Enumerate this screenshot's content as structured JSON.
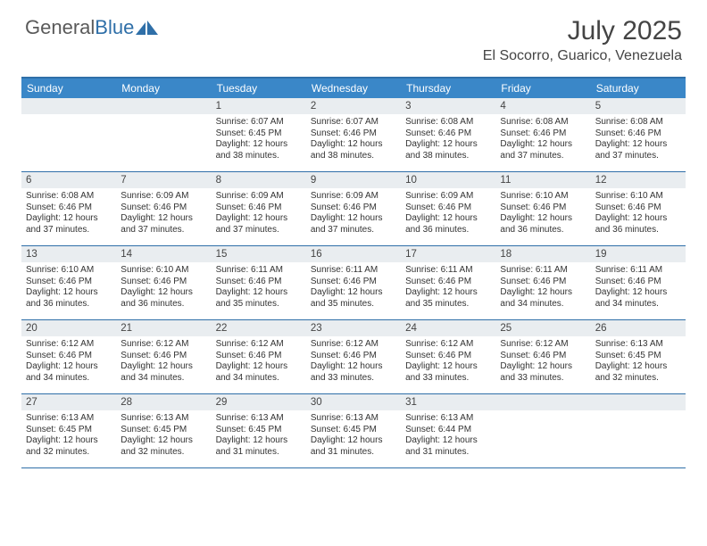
{
  "logo": {
    "text1": "General",
    "text2": "Blue"
  },
  "title": "July 2025",
  "location": "El Socorro, Guarico, Venezuela",
  "colors": {
    "header_bar": "#3a87c8",
    "border": "#2f6fa8",
    "day_band": "#e9edf0",
    "logo_gray": "#5a5a5a",
    "logo_blue": "#2f6fa8"
  },
  "day_names": [
    "Sunday",
    "Monday",
    "Tuesday",
    "Wednesday",
    "Thursday",
    "Friday",
    "Saturday"
  ],
  "labels": {
    "sunrise": "Sunrise:",
    "sunset": "Sunset:",
    "daylight": "Daylight:"
  },
  "weeks": [
    [
      null,
      null,
      {
        "n": "1",
        "sr": "6:07 AM",
        "ss": "6:45 PM",
        "dl": "12 hours and 38 minutes."
      },
      {
        "n": "2",
        "sr": "6:07 AM",
        "ss": "6:46 PM",
        "dl": "12 hours and 38 minutes."
      },
      {
        "n": "3",
        "sr": "6:08 AM",
        "ss": "6:46 PM",
        "dl": "12 hours and 38 minutes."
      },
      {
        "n": "4",
        "sr": "6:08 AM",
        "ss": "6:46 PM",
        "dl": "12 hours and 37 minutes."
      },
      {
        "n": "5",
        "sr": "6:08 AM",
        "ss": "6:46 PM",
        "dl": "12 hours and 37 minutes."
      }
    ],
    [
      {
        "n": "6",
        "sr": "6:08 AM",
        "ss": "6:46 PM",
        "dl": "12 hours and 37 minutes."
      },
      {
        "n": "7",
        "sr": "6:09 AM",
        "ss": "6:46 PM",
        "dl": "12 hours and 37 minutes."
      },
      {
        "n": "8",
        "sr": "6:09 AM",
        "ss": "6:46 PM",
        "dl": "12 hours and 37 minutes."
      },
      {
        "n": "9",
        "sr": "6:09 AM",
        "ss": "6:46 PM",
        "dl": "12 hours and 37 minutes."
      },
      {
        "n": "10",
        "sr": "6:09 AM",
        "ss": "6:46 PM",
        "dl": "12 hours and 36 minutes."
      },
      {
        "n": "11",
        "sr": "6:10 AM",
        "ss": "6:46 PM",
        "dl": "12 hours and 36 minutes."
      },
      {
        "n": "12",
        "sr": "6:10 AM",
        "ss": "6:46 PM",
        "dl": "12 hours and 36 minutes."
      }
    ],
    [
      {
        "n": "13",
        "sr": "6:10 AM",
        "ss": "6:46 PM",
        "dl": "12 hours and 36 minutes."
      },
      {
        "n": "14",
        "sr": "6:10 AM",
        "ss": "6:46 PM",
        "dl": "12 hours and 36 minutes."
      },
      {
        "n": "15",
        "sr": "6:11 AM",
        "ss": "6:46 PM",
        "dl": "12 hours and 35 minutes."
      },
      {
        "n": "16",
        "sr": "6:11 AM",
        "ss": "6:46 PM",
        "dl": "12 hours and 35 minutes."
      },
      {
        "n": "17",
        "sr": "6:11 AM",
        "ss": "6:46 PM",
        "dl": "12 hours and 35 minutes."
      },
      {
        "n": "18",
        "sr": "6:11 AM",
        "ss": "6:46 PM",
        "dl": "12 hours and 34 minutes."
      },
      {
        "n": "19",
        "sr": "6:11 AM",
        "ss": "6:46 PM",
        "dl": "12 hours and 34 minutes."
      }
    ],
    [
      {
        "n": "20",
        "sr": "6:12 AM",
        "ss": "6:46 PM",
        "dl": "12 hours and 34 minutes."
      },
      {
        "n": "21",
        "sr": "6:12 AM",
        "ss": "6:46 PM",
        "dl": "12 hours and 34 minutes."
      },
      {
        "n": "22",
        "sr": "6:12 AM",
        "ss": "6:46 PM",
        "dl": "12 hours and 34 minutes."
      },
      {
        "n": "23",
        "sr": "6:12 AM",
        "ss": "6:46 PM",
        "dl": "12 hours and 33 minutes."
      },
      {
        "n": "24",
        "sr": "6:12 AM",
        "ss": "6:46 PM",
        "dl": "12 hours and 33 minutes."
      },
      {
        "n": "25",
        "sr": "6:12 AM",
        "ss": "6:46 PM",
        "dl": "12 hours and 33 minutes."
      },
      {
        "n": "26",
        "sr": "6:13 AM",
        "ss": "6:45 PM",
        "dl": "12 hours and 32 minutes."
      }
    ],
    [
      {
        "n": "27",
        "sr": "6:13 AM",
        "ss": "6:45 PM",
        "dl": "12 hours and 32 minutes."
      },
      {
        "n": "28",
        "sr": "6:13 AM",
        "ss": "6:45 PM",
        "dl": "12 hours and 32 minutes."
      },
      {
        "n": "29",
        "sr": "6:13 AM",
        "ss": "6:45 PM",
        "dl": "12 hours and 31 minutes."
      },
      {
        "n": "30",
        "sr": "6:13 AM",
        "ss": "6:45 PM",
        "dl": "12 hours and 31 minutes."
      },
      {
        "n": "31",
        "sr": "6:13 AM",
        "ss": "6:44 PM",
        "dl": "12 hours and 31 minutes."
      },
      null,
      null
    ]
  ]
}
